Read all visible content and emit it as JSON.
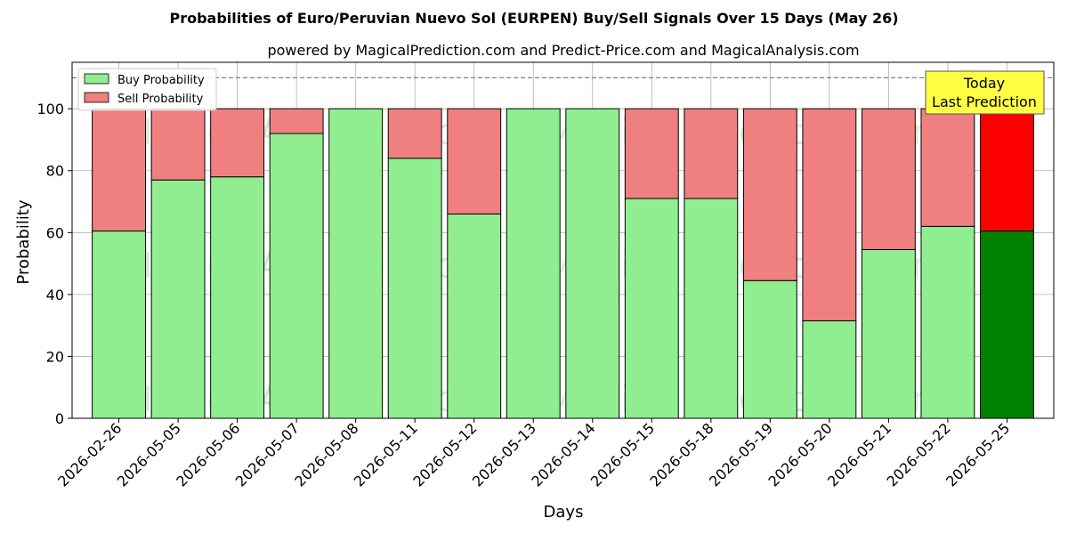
{
  "chart_data": {
    "type": "bar",
    "stacked": true,
    "title": "Probabilities of Euro/Peruvian Nuevo Sol (EURPEN) Buy/Sell Signals Over 15 Days (May 26)",
    "subtitle": "powered by MagicalPrediction.com and Predict-Price.com and MagicalAnalysis.com",
    "xlabel": "Days",
    "ylabel": "Probability",
    "ylim": [
      0,
      115
    ],
    "yticks": [
      0,
      20,
      40,
      60,
      80,
      100
    ],
    "reference_line": 110,
    "grid": true,
    "legend_position": "top-left",
    "categories": [
      "2026-02-26",
      "2026-05-05",
      "2026-05-06",
      "2026-05-07",
      "2026-05-08",
      "2026-05-11",
      "2026-05-12",
      "2026-05-13",
      "2026-05-14",
      "2026-05-15",
      "2026-05-18",
      "2026-05-19",
      "2026-05-20",
      "2026-05-21",
      "2026-05-22",
      "2026-05-25"
    ],
    "series": [
      {
        "name": "Buy Probability",
        "values": [
          60.5,
          77,
          78,
          92,
          100,
          84,
          66,
          100,
          100,
          71,
          71,
          44.5,
          31.5,
          54.5,
          62,
          60.5
        ]
      },
      {
        "name": "Sell Probability",
        "values": [
          39.5,
          23,
          22,
          8,
          0,
          16,
          34,
          0,
          0,
          29,
          29,
          55.5,
          68.5,
          45.5,
          38,
          39.5
        ]
      }
    ],
    "colors": {
      "buy": "#90ee90",
      "sell": "#f08080",
      "buy_highlight": "#008000",
      "sell_highlight": "#ff0000",
      "callout_bg": "#ffff44"
    },
    "highlight_index": 15,
    "callout": {
      "line1": "Today",
      "line2": "Last Prediction"
    },
    "watermarks": [
      "MagicalAnalysis.com",
      "MagicalPrediction.com"
    ]
  }
}
